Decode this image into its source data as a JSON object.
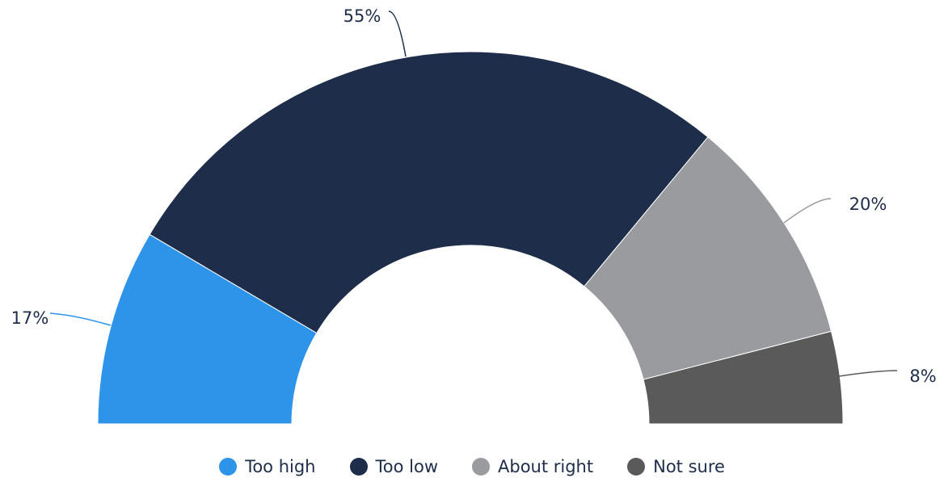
{
  "chart_data": {
    "type": "pie",
    "variant": "half-donut",
    "title": "",
    "categories": [
      "Too high",
      "Too low",
      "About right",
      "Not sure"
    ],
    "values": [
      17,
      55,
      20,
      8
    ],
    "labels": [
      "17%",
      "55%",
      "20%",
      "8%"
    ],
    "colors": [
      "#2e94ea",
      "#1d2d4a",
      "#9a9b9f",
      "#5a5a5a"
    ],
    "legend_position": "bottom"
  }
}
